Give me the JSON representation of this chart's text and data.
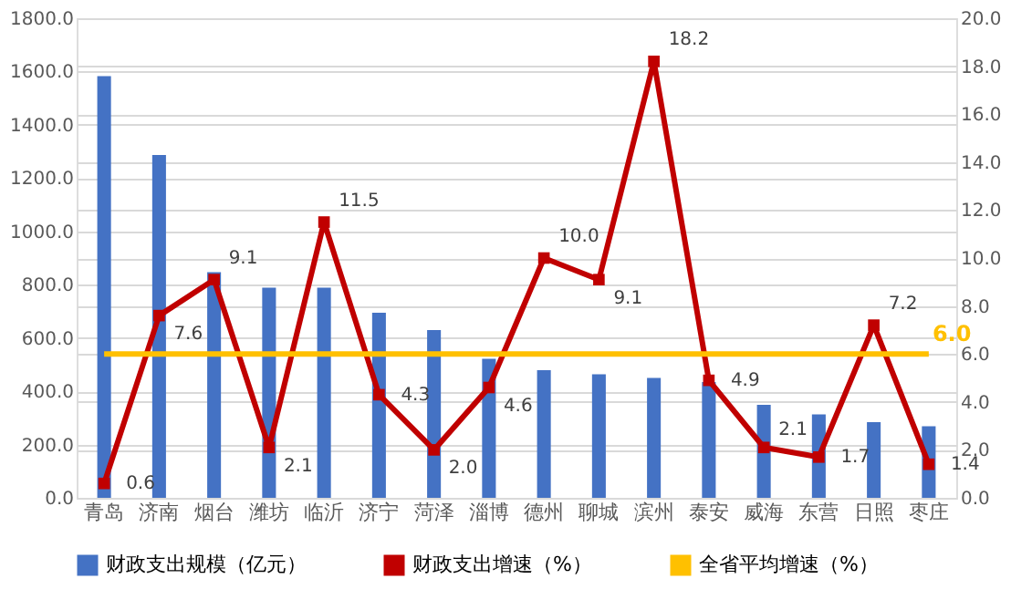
{
  "chart_data": {
    "type": "bar",
    "categories": [
      "青岛",
      "济南",
      "烟台",
      "潍坊",
      "临沂",
      "济宁",
      "菏泽",
      "淄博",
      "德州",
      "聊城",
      "滨州",
      "泰安",
      "威海",
      "东营",
      "日照",
      "枣庄"
    ],
    "series": [
      {
        "name": "财政支出规模（亿元）",
        "type": "bar",
        "color": "#4472c4",
        "values": [
          1583,
          1287,
          847,
          789,
          789,
          695,
          630,
          522,
          479,
          464,
          450,
          435,
          349,
          313,
          284,
          269
        ]
      },
      {
        "name": "财政支出增速（%）",
        "type": "line",
        "axis": "y2",
        "color": "#c00000",
        "marker": "square",
        "values": [
          0.6,
          7.6,
          9.1,
          2.1,
          11.5,
          4.3,
          2.0,
          4.6,
          10.0,
          9.1,
          18.2,
          4.9,
          2.1,
          1.7,
          7.2,
          1.4
        ],
        "value_labels": [
          "0.6",
          "7.6",
          "9.1",
          "2.1",
          "11.5",
          "4.3",
          "2.0",
          "4.6",
          "10.0",
          "9.1",
          "18.2",
          "4.9",
          "2.1",
          "1.7",
          "7.2",
          "1.4"
        ]
      },
      {
        "name": "全省平均增速（%）",
        "type": "line",
        "axis": "y2",
        "color": "#ffc000",
        "marker": "none",
        "values": [
          6.0,
          6.0,
          6.0,
          6.0,
          6.0,
          6.0,
          6.0,
          6.0,
          6.0,
          6.0,
          6.0,
          6.0,
          6.0,
          6.0,
          6.0,
          6.0
        ],
        "value_labels": [
          null,
          null,
          null,
          null,
          null,
          null,
          null,
          null,
          null,
          null,
          null,
          null,
          null,
          null,
          null,
          "6.0"
        ]
      }
    ],
    "ylim": [
      0,
      1800
    ],
    "yticks": [
      {
        "value": 0,
        "label": "0.0"
      },
      {
        "value": 200,
        "label": "200.0"
      },
      {
        "value": 400,
        "label": "400.0"
      },
      {
        "value": 600,
        "label": "600.0"
      },
      {
        "value": 800,
        "label": "800.0"
      },
      {
        "value": 1000,
        "label": "1000.0"
      },
      {
        "value": 1200,
        "label": "1200.0"
      },
      {
        "value": 1400,
        "label": "1400.0"
      },
      {
        "value": 1600,
        "label": "1600.0"
      },
      {
        "value": 1800,
        "label": "1800.0"
      }
    ],
    "y2lim": [
      0,
      20
    ],
    "y2ticks": [
      {
        "value": 0,
        "label": "0.0"
      },
      {
        "value": 2,
        "label": "2.0"
      },
      {
        "value": 4,
        "label": "4.0"
      },
      {
        "value": 6,
        "label": "6.0"
      },
      {
        "value": 8,
        "label": "8.0"
      },
      {
        "value": 10,
        "label": "10.0"
      },
      {
        "value": 12,
        "label": "12.0"
      },
      {
        "value": 14,
        "label": "14.0"
      },
      {
        "value": 16,
        "label": "16.0"
      },
      {
        "value": 18,
        "label": "18.0"
      },
      {
        "value": 20,
        "label": "20.0"
      }
    ],
    "grid": "y",
    "legend": "bottom"
  }
}
